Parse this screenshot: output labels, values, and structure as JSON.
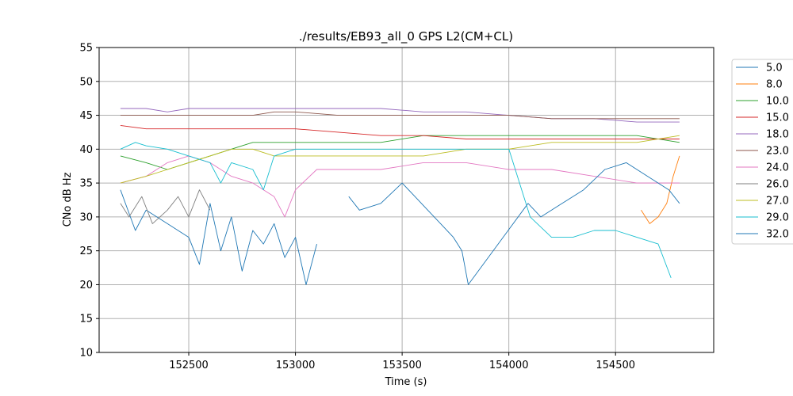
{
  "chart_data": {
    "type": "line",
    "title": "./results/EB93_all_0 GPS L2(CM+CL)",
    "xlabel": "Time (s)",
    "ylabel": "CNo dB Hz",
    "xlim": [
      152080,
      154960
    ],
    "ylim": [
      10,
      55
    ],
    "x_ticks": [
      152500,
      153000,
      153500,
      154000,
      154500
    ],
    "y_ticks": [
      10,
      15,
      20,
      25,
      30,
      35,
      40,
      45,
      50,
      55
    ],
    "grid": true,
    "legend_position": "outside-right",
    "series": [
      {
        "name": "5.0",
        "color": "#1f77b4",
        "points": [
          [
            152180,
            34
          ],
          [
            152250,
            28
          ],
          [
            152300,
            31
          ],
          [
            152400,
            29
          ],
          [
            152500,
            27
          ],
          [
            152550,
            23
          ],
          [
            152600,
            32
          ],
          [
            152650,
            25
          ],
          [
            152700,
            30
          ],
          [
            152750,
            22
          ],
          [
            152800,
            28
          ],
          [
            152850,
            26
          ],
          [
            152900,
            29
          ],
          [
            152950,
            24
          ],
          [
            153000,
            27
          ],
          [
            153050,
            20
          ],
          [
            153100,
            26
          ]
        ]
      },
      {
        "name": "8.0",
        "color": "#ff7f0e",
        "points": [
          [
            154620,
            31
          ],
          [
            154660,
            29
          ],
          [
            154700,
            30
          ],
          [
            154740,
            32
          ],
          [
            154770,
            36
          ],
          [
            154800,
            39
          ]
        ]
      },
      {
        "name": "10.0",
        "color": "#2ca02c",
        "points": [
          [
            152180,
            39
          ],
          [
            152300,
            38
          ],
          [
            152400,
            37
          ],
          [
            152500,
            38
          ],
          [
            152600,
            39
          ],
          [
            152700,
            40
          ],
          [
            152800,
            41
          ],
          [
            152900,
            41
          ],
          [
            153000,
            41
          ],
          [
            153200,
            41
          ],
          [
            153400,
            41
          ],
          [
            153600,
            42
          ],
          [
            153800,
            42
          ],
          [
            154000,
            42
          ],
          [
            154200,
            42
          ],
          [
            154400,
            42
          ],
          [
            154600,
            42
          ],
          [
            154800,
            41
          ]
        ]
      },
      {
        "name": "15.0",
        "color": "#d62728",
        "points": [
          [
            152180,
            43.5
          ],
          [
            152300,
            43
          ],
          [
            152400,
            43
          ],
          [
            152500,
            43
          ],
          [
            152600,
            43
          ],
          [
            152700,
            43
          ],
          [
            152800,
            43
          ],
          [
            152900,
            43
          ],
          [
            153000,
            43
          ],
          [
            153200,
            42.5
          ],
          [
            153400,
            42
          ],
          [
            153600,
            42
          ],
          [
            153800,
            41.5
          ],
          [
            154000,
            41.5
          ],
          [
            154200,
            41.5
          ],
          [
            154400,
            41.5
          ],
          [
            154600,
            41.5
          ],
          [
            154800,
            41.5
          ]
        ]
      },
      {
        "name": "18.0",
        "color": "#9467bd",
        "points": [
          [
            152180,
            46
          ],
          [
            152300,
            46
          ],
          [
            152400,
            45.5
          ],
          [
            152500,
            46
          ],
          [
            152600,
            46
          ],
          [
            152700,
            46
          ],
          [
            152800,
            46
          ],
          [
            152900,
            46
          ],
          [
            153000,
            46
          ],
          [
            153200,
            46
          ],
          [
            153400,
            46
          ],
          [
            153600,
            45.5
          ],
          [
            153800,
            45.5
          ],
          [
            154000,
            45
          ],
          [
            154200,
            44.5
          ],
          [
            154400,
            44.5
          ],
          [
            154600,
            44
          ],
          [
            154800,
            44
          ]
        ]
      },
      {
        "name": "23.0",
        "color": "#8c564b",
        "points": [
          [
            152180,
            45
          ],
          [
            152300,
            45
          ],
          [
            152400,
            45
          ],
          [
            152500,
            45
          ],
          [
            152600,
            45
          ],
          [
            152700,
            45
          ],
          [
            152800,
            45
          ],
          [
            152900,
            45.5
          ],
          [
            153000,
            45.5
          ],
          [
            153200,
            45
          ],
          [
            153400,
            45
          ],
          [
            153600,
            45
          ],
          [
            153800,
            45
          ],
          [
            154000,
            45
          ],
          [
            154200,
            44.5
          ],
          [
            154400,
            44.5
          ],
          [
            154600,
            44.5
          ],
          [
            154800,
            44.5
          ]
        ]
      },
      {
        "name": "24.0",
        "color": "#e377c2",
        "points": [
          [
            152180,
            35
          ],
          [
            152300,
            36
          ],
          [
            152400,
            38
          ],
          [
            152500,
            39
          ],
          [
            152600,
            38
          ],
          [
            152700,
            36
          ],
          [
            152800,
            35
          ],
          [
            152900,
            33
          ],
          [
            152950,
            30
          ],
          [
            153000,
            34
          ],
          [
            153100,
            37
          ],
          [
            153200,
            37
          ],
          [
            153400,
            37
          ],
          [
            153600,
            38
          ],
          [
            153800,
            38
          ],
          [
            154000,
            37
          ],
          [
            154200,
            37
          ],
          [
            154400,
            36
          ],
          [
            154600,
            35
          ],
          [
            154800,
            35
          ]
        ]
      },
      {
        "name": "26.0",
        "color": "#7f7f7f",
        "points": [
          [
            152180,
            32
          ],
          [
            152220,
            30
          ],
          [
            152280,
            33
          ],
          [
            152330,
            29
          ],
          [
            152400,
            31
          ],
          [
            152450,
            33
          ],
          [
            152500,
            30
          ],
          [
            152550,
            34
          ],
          [
            152600,
            31
          ]
        ]
      },
      {
        "name": "27.0",
        "color": "#bcbd22",
        "points": [
          [
            152180,
            35
          ],
          [
            152300,
            36
          ],
          [
            152400,
            37
          ],
          [
            152500,
            38
          ],
          [
            152600,
            39
          ],
          [
            152700,
            40
          ],
          [
            152800,
            40
          ],
          [
            152900,
            39
          ],
          [
            153000,
            39
          ],
          [
            153200,
            39
          ],
          [
            153400,
            39
          ],
          [
            153600,
            39
          ],
          [
            153800,
            40
          ],
          [
            154000,
            40
          ],
          [
            154200,
            41
          ],
          [
            154400,
            41
          ],
          [
            154600,
            41
          ],
          [
            154800,
            42
          ]
        ]
      },
      {
        "name": "29.0",
        "color": "#17becf",
        "points": [
          [
            152180,
            40
          ],
          [
            152250,
            41
          ],
          [
            152300,
            40.5
          ],
          [
            152400,
            40
          ],
          [
            152500,
            39
          ],
          [
            152600,
            38
          ],
          [
            152650,
            35
          ],
          [
            152700,
            38
          ],
          [
            152800,
            37
          ],
          [
            152850,
            34
          ],
          [
            152900,
            39
          ],
          [
            153000,
            40
          ],
          [
            153100,
            40
          ],
          [
            153200,
            40
          ],
          [
            153400,
            40
          ],
          [
            153600,
            40
          ],
          [
            153800,
            40
          ],
          [
            154000,
            40
          ],
          [
            154100,
            30
          ],
          [
            154200,
            27
          ],
          [
            154300,
            27
          ],
          [
            154400,
            28
          ],
          [
            154500,
            28
          ],
          [
            154600,
            27
          ],
          [
            154700,
            26
          ],
          [
            154760,
            21
          ]
        ]
      },
      {
        "name": "32.0",
        "color": "#1f77b4",
        "points": [
          [
            153250,
            33
          ],
          [
            153300,
            31
          ],
          [
            153400,
            32
          ],
          [
            153500,
            35
          ],
          [
            153560,
            33
          ],
          [
            153620,
            31
          ],
          [
            153680,
            29
          ],
          [
            153740,
            27
          ],
          [
            153780,
            25
          ],
          [
            153810,
            20
          ],
          [
            154090,
            32
          ],
          [
            154150,
            30
          ],
          [
            154250,
            32
          ],
          [
            154350,
            34
          ],
          [
            154450,
            37
          ],
          [
            154550,
            38
          ],
          [
            154650,
            36
          ],
          [
            154750,
            34
          ],
          [
            154800,
            32
          ]
        ]
      }
    ]
  }
}
